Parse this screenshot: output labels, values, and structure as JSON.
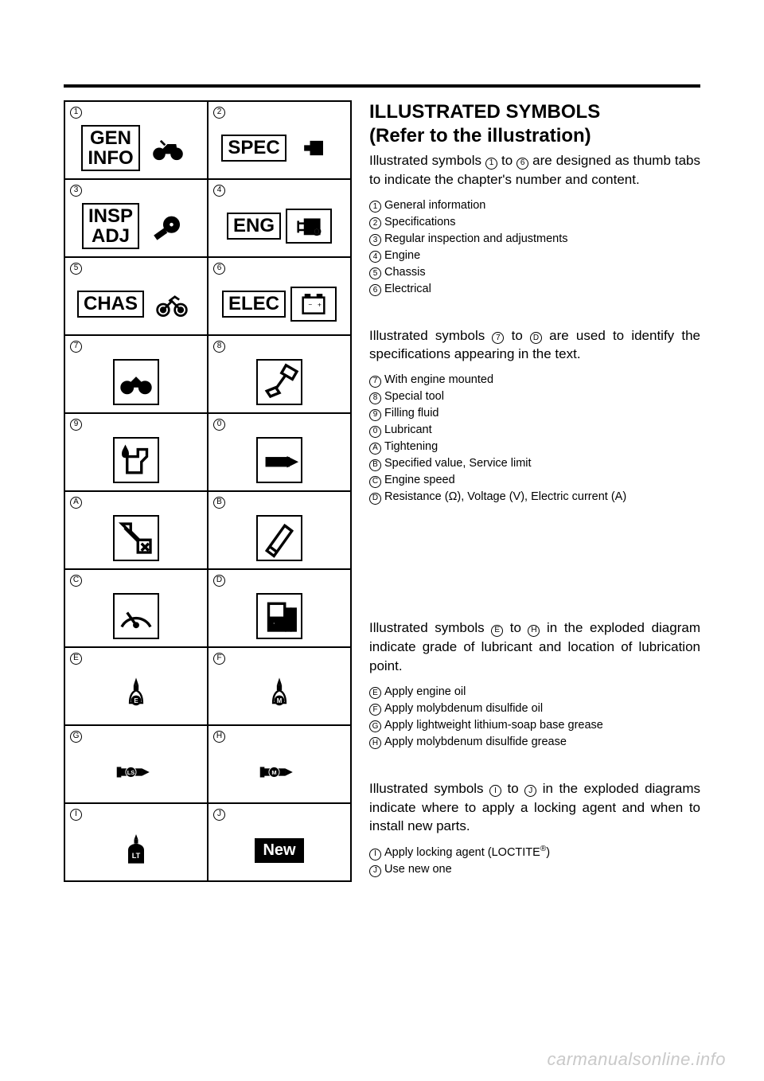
{
  "watermark": "carmanualsonline.info",
  "grid": {
    "cells": [
      {
        "num": "1",
        "type": "tab",
        "text1": "GEN",
        "text2": "INFO",
        "icon": "moto"
      },
      {
        "num": "2",
        "type": "tab",
        "text1": "SPEC",
        "icon": "bolt"
      },
      {
        "num": "3",
        "type": "tab",
        "text1": "INSP",
        "text2": "ADJ",
        "icon": "wrench-eye"
      },
      {
        "num": "4",
        "type": "tab",
        "text1": "ENG",
        "icon": "engine"
      },
      {
        "num": "5",
        "type": "tab",
        "text1": "CHAS",
        "icon": "moto-chas"
      },
      {
        "num": "6",
        "type": "tab",
        "text1": "ELEC",
        "icon": "battery"
      },
      {
        "num": "7",
        "type": "icon",
        "icon": "moto-sm"
      },
      {
        "num": "8",
        "type": "icon",
        "icon": "special-tool"
      },
      {
        "num": "9",
        "type": "icon",
        "icon": "fill-fluid"
      },
      {
        "num": "0",
        "type": "icon",
        "icon": "lubricant"
      },
      {
        "num": "A",
        "type": "icon",
        "icon": "tightening"
      },
      {
        "num": "B",
        "type": "icon",
        "icon": "spec-value"
      },
      {
        "num": "C",
        "type": "icon",
        "icon": "gauge"
      },
      {
        "num": "D",
        "type": "icon",
        "icon": "meter"
      },
      {
        "num": "E",
        "type": "icon-nb",
        "icon": "oil-e",
        "label": "E"
      },
      {
        "num": "F",
        "type": "icon-nb",
        "icon": "oil-m",
        "label": "M"
      },
      {
        "num": "G",
        "type": "icon-nb",
        "icon": "grease-ls",
        "label": "LS"
      },
      {
        "num": "H",
        "type": "icon-nb",
        "icon": "grease-m",
        "label": "M"
      },
      {
        "num": "I",
        "type": "icon-nb",
        "icon": "lock-lt",
        "label": "LT"
      },
      {
        "num": "J",
        "type": "new",
        "label": "New"
      }
    ]
  },
  "right": {
    "title": "ILLUSTRATED SYMBOLS",
    "subtitle": "(Refer to the illustration)",
    "para1": "Illustrated symbols 1 to 6 are designed as thumb tabs to indicate the chapter's number and content.",
    "legend1": [
      {
        "n": "1",
        "t": "General information"
      },
      {
        "n": "2",
        "t": "Specifications"
      },
      {
        "n": "3",
        "t": "Regular inspection and adjustments"
      },
      {
        "n": "4",
        "t": "Engine"
      },
      {
        "n": "5",
        "t": "Chassis"
      },
      {
        "n": "6",
        "t": "Electrical"
      }
    ],
    "para2": "Illustrated symbols 7 to D are used to identify the specifications appearing in the text.",
    "legend2": [
      {
        "n": "7",
        "t": "With engine mounted"
      },
      {
        "n": "8",
        "t": "Special tool"
      },
      {
        "n": "9",
        "t": "Filling fluid"
      },
      {
        "n": "0",
        "t": "Lubricant"
      },
      {
        "n": "A",
        "t": "Tightening"
      },
      {
        "n": "B",
        "t": "Specified value, Service limit"
      },
      {
        "n": "C",
        "t": "Engine speed"
      },
      {
        "n": "D",
        "t": "Resistance (Ω), Voltage (V), Electric current (A)"
      }
    ],
    "para3": "Illustrated symbols E to H in the exploded diagram indicate grade of lubricant and location of lubrication point.",
    "legend3": [
      {
        "n": "E",
        "t": "Apply engine oil"
      },
      {
        "n": "F",
        "t": "Apply molybdenum disulfide oil"
      },
      {
        "n": "G",
        "t": "Apply lightweight lithium-soap base grease"
      },
      {
        "n": "H",
        "t": "Apply molybdenum disulfide grease"
      }
    ],
    "para4": "Illustrated symbols I to J in the exploded diagrams indicate where to apply a locking agent and when to install new parts.",
    "legend4": [
      {
        "n": "I",
        "t": "Apply locking agent (LOCTITE®)"
      },
      {
        "n": "J",
        "t": "Use new one"
      }
    ]
  },
  "colors": {
    "text": "#000000",
    "bg": "#ffffff",
    "watermark": "#c9c9c9"
  }
}
